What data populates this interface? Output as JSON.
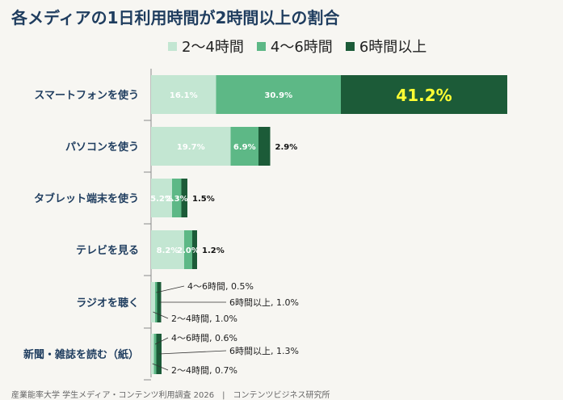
{
  "title": "各メディアの1日利用時間が2時間以上の割合",
  "footer": "産業能率大学 学生メディア・コンテンツ利用調査 2026　|　コンテンツビジネス研究所",
  "colors": {
    "s1": "#c3e6d2",
    "s2": "#5db886",
    "s3": "#1c5b38"
  },
  "chart_data": {
    "type": "bar",
    "orientation": "horizontal",
    "stacked": true,
    "categories": [
      "スマートフォンを使う",
      "パソコンを使う",
      "タブレット端末を使う",
      "テレビを見る",
      "ラジオを聴く",
      "新聞・雑誌を読む（紙）"
    ],
    "series": [
      {
        "name": "2～4時間",
        "values": [
          16.1,
          19.7,
          5.2,
          8.2,
          1.0,
          0.7
        ]
      },
      {
        "name": "4～6時間",
        "values": [
          30.9,
          6.9,
          2.3,
          2.0,
          0.5,
          0.6
        ]
      },
      {
        "name": "6時間以上",
        "values": [
          41.2,
          2.9,
          1.5,
          1.2,
          1.0,
          1.3
        ]
      }
    ],
    "data_labels": [
      [
        "16.1%",
        "30.9%",
        "41.2%"
      ],
      [
        "19.7%",
        "6.9%",
        "2.9%"
      ],
      [
        "5.2%",
        "2.3%",
        "1.5%"
      ],
      [
        "8.2%",
        "2.0%",
        "1.2%"
      ],
      [
        "2～4時間, 1.0%",
        "4～6時間, 0.5%",
        "6時間以上, 1.0%"
      ],
      [
        "2～4時間, 0.7%",
        "4～6時間, 0.6%",
        "6時間以上, 1.3%"
      ]
    ],
    "legend_position": "top",
    "grid": false
  }
}
